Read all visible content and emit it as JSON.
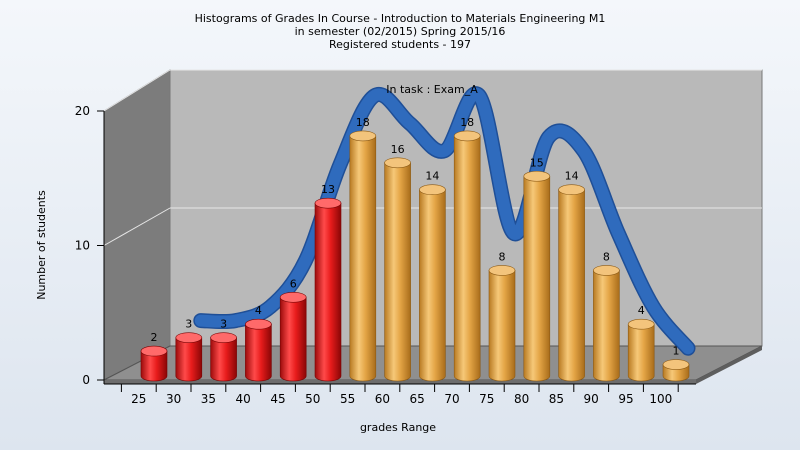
{
  "chart_data": {
    "type": "bar",
    "title": [
      "Histograms of Grades  In Course - Introduction to Materials Engineering M1",
      "in semester  (02/2015) Spring 2015/16",
      "Registered students - 197"
    ],
    "annotation": "In task : Exam_A",
    "xlabel": "grades Range",
    "ylabel": "Number of students",
    "categories": [
      "25",
      "30",
      "35",
      "40",
      "45",
      "50",
      "55",
      "60",
      "65",
      "70",
      "75",
      "80",
      "85",
      "90",
      "95",
      "100"
    ],
    "values": [
      2,
      3,
      3,
      4,
      6,
      13,
      18,
      16,
      14,
      18,
      8,
      15,
      14,
      8,
      4,
      1
    ],
    "yticks": [
      "0",
      "10",
      "20"
    ],
    "ylim": [
      0,
      20
    ],
    "grid": true,
    "colors": {
      "fail": "#e02020",
      "pass": "#e2a447",
      "curve": "#2f6bbd",
      "back_wall": "#b9b9b9",
      "side_wall": "#7c7c7c",
      "floor": "#8f8f8f"
    },
    "fail_count": 6
  }
}
